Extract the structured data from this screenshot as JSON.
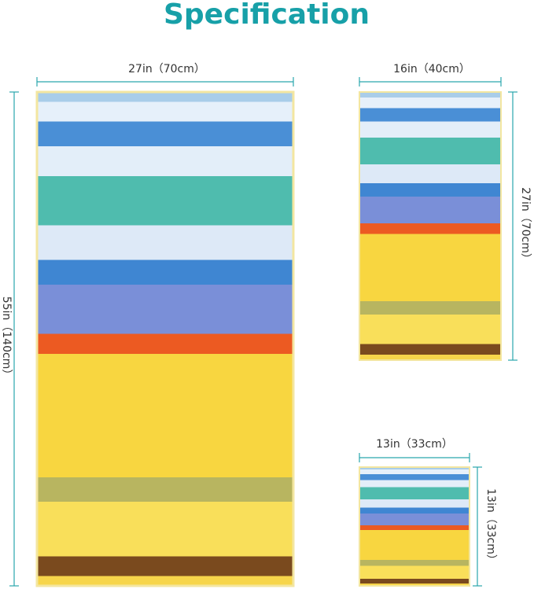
{
  "title": "Specification",
  "towels": [
    {
      "width": "27in（70cm）",
      "height": "55in（140cm）"
    },
    {
      "width": "16in（40cm）",
      "height": "27in（70cm）"
    },
    {
      "width": "13in（33cm）",
      "height": "13in（33cm）"
    }
  ]
}
